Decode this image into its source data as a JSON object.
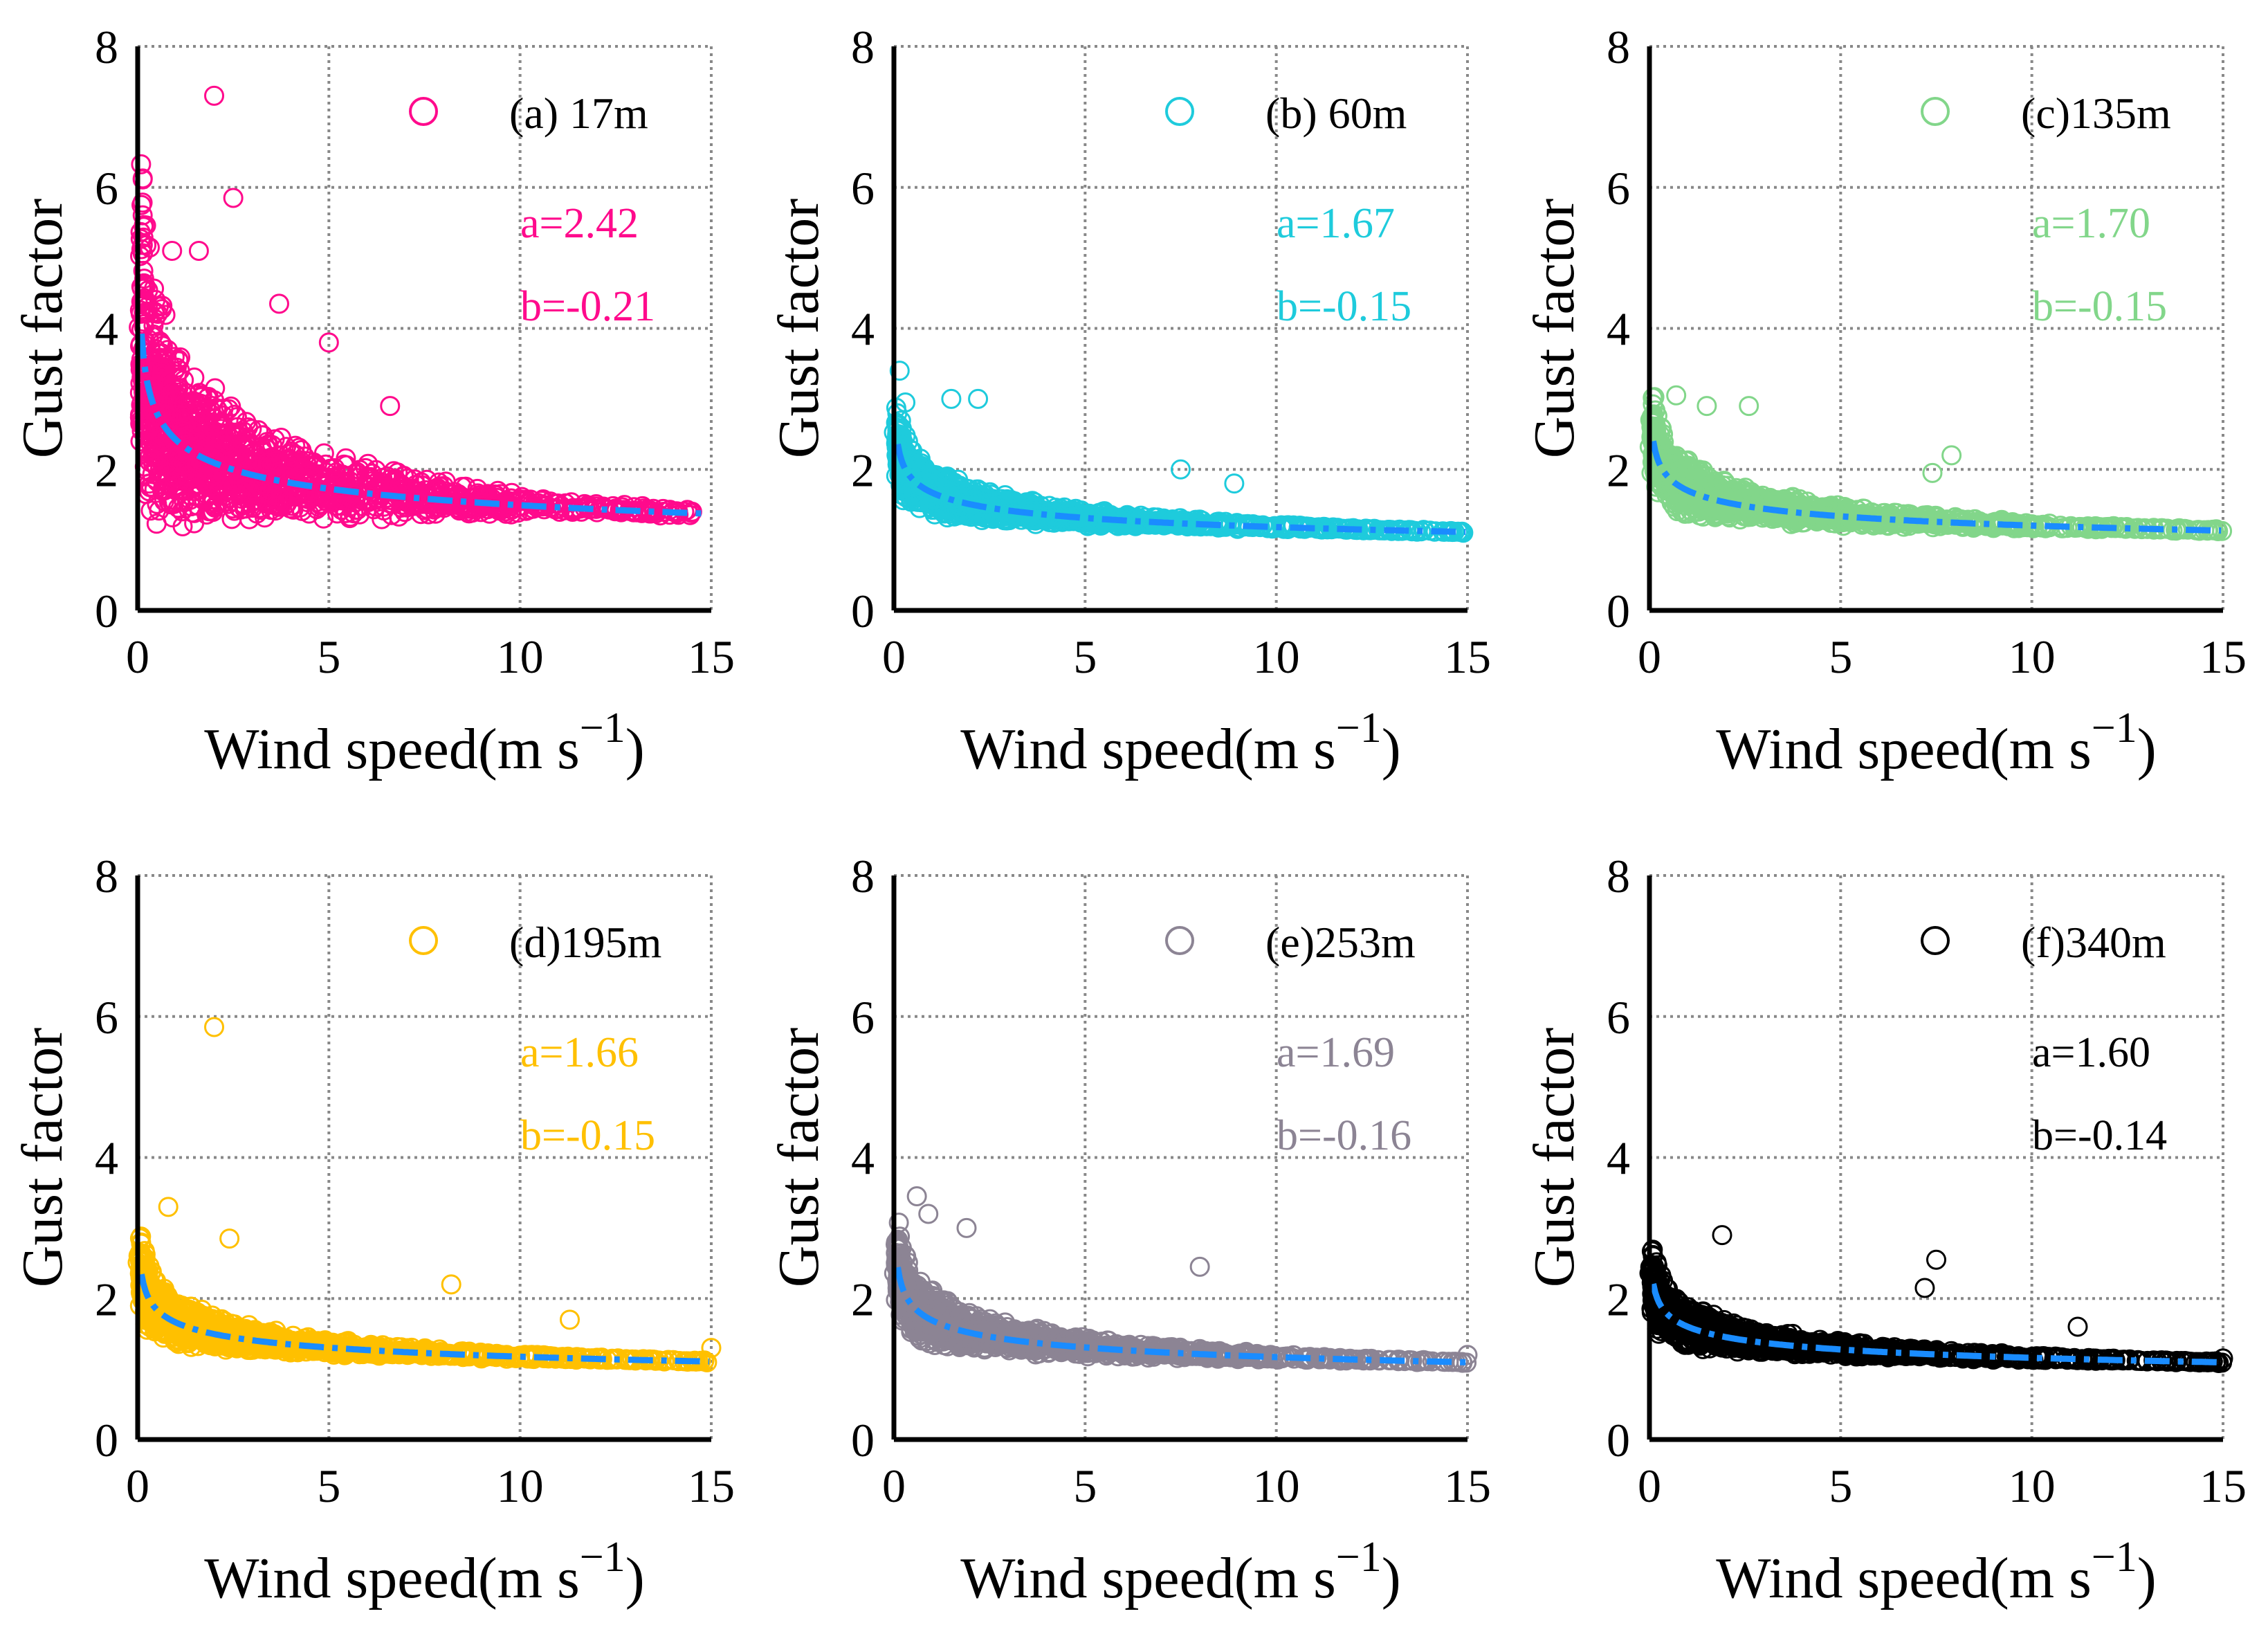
{
  "chart_data": [
    {
      "type": "scatter",
      "panel_label": "(a) 17m",
      "color": "#FF0A8C",
      "fit": {
        "a": 2.42,
        "b": -0.21
      },
      "fit_a_label": "a=2.42",
      "fit_b_label": "b=-0.21",
      "text_color": "#FF0A8C",
      "spread": 0.9,
      "xmax": 14.5,
      "outliers": [
        [
          2.0,
          7.3
        ],
        [
          2.5,
          5.85
        ],
        [
          0.1,
          5.75
        ],
        [
          0.9,
          5.1
        ],
        [
          1.6,
          5.1
        ],
        [
          3.7,
          4.35
        ],
        [
          5.0,
          3.8
        ],
        [
          6.6,
          2.9
        ],
        [
          14.5,
          1.4
        ],
        [
          13.3,
          1.4
        ]
      ]
    },
    {
      "type": "scatter",
      "panel_label": "(b) 60m",
      "color": "#1ECBDC",
      "fit": {
        "a": 1.67,
        "b": -0.15
      },
      "fit_a_label": "a=1.67",
      "fit_b_label": "b=-0.15",
      "text_color": "#1ECBDC",
      "spread": 0.45,
      "xmax": 15,
      "outliers": [
        [
          0.15,
          3.4
        ],
        [
          1.5,
          3.0
        ],
        [
          2.2,
          3.0
        ],
        [
          7.5,
          2.0
        ],
        [
          8.9,
          1.8
        ],
        [
          0.3,
          2.95
        ]
      ]
    },
    {
      "type": "scatter",
      "panel_label": "(c)135m",
      "color": "#82D68A",
      "fit": {
        "a": 1.7,
        "b": -0.15
      },
      "fit_a_label": "a=1.70",
      "fit_b_label": "b=-0.15",
      "text_color": "#82D68A",
      "spread": 0.5,
      "xmax": 15,
      "outliers": [
        [
          0.7,
          3.05
        ],
        [
          1.5,
          2.9
        ],
        [
          2.6,
          2.9
        ],
        [
          7.9,
          2.2
        ],
        [
          7.4,
          1.95
        ]
      ]
    },
    {
      "type": "scatter",
      "panel_label": "(d)195m",
      "color": "#FFC000",
      "fit": {
        "a": 1.66,
        "b": -0.15
      },
      "fit_a_label": "a=1.66",
      "fit_b_label": "b=-0.15",
      "text_color": "#FFC000",
      "spread": 0.45,
      "xmax": 15,
      "outliers": [
        [
          2.0,
          5.85
        ],
        [
          0.8,
          3.3
        ],
        [
          2.4,
          2.85
        ],
        [
          8.2,
          2.2
        ],
        [
          11.3,
          1.7
        ],
        [
          15,
          1.3
        ]
      ]
    },
    {
      "type": "scatter",
      "panel_label": "(e)253m",
      "color": "#8C8494",
      "fit": {
        "a": 1.69,
        "b": -0.16
      },
      "fit_a_label": "a=1.69",
      "fit_b_label": "b=-0.16",
      "text_color": "#8C8494",
      "spread": 0.5,
      "xmax": 15,
      "outliers": [
        [
          0.6,
          3.45
        ],
        [
          0.9,
          3.2
        ],
        [
          1.9,
          3.0
        ],
        [
          8.0,
          2.45
        ],
        [
          15,
          1.2
        ]
      ]
    },
    {
      "type": "scatter",
      "panel_label": "(f)340m",
      "color": "#000000",
      "fit": {
        "a": 1.6,
        "b": -0.14
      },
      "fit_a_label": "a=1.60",
      "fit_b_label": "b=-0.14",
      "text_color": "#000000",
      "spread": 0.45,
      "xmax": 15,
      "outliers": [
        [
          1.9,
          2.9
        ],
        [
          7.5,
          2.55
        ],
        [
          7.2,
          2.15
        ],
        [
          11.2,
          1.6
        ],
        [
          15,
          1.15
        ]
      ]
    }
  ],
  "axes": {
    "xlabel": "Wind speed(m s",
    "xlabel_sup": "−1",
    "xlabel_close": ")",
    "ylabel": "Gust factor",
    "xlim": [
      0,
      15
    ],
    "ylim": [
      0,
      8
    ],
    "xticks": [
      "0",
      "5",
      "10",
      "15"
    ],
    "yticks": [
      "0",
      "2",
      "4",
      "6",
      "8"
    ],
    "grid": true
  },
  "fit_line_color": "#1A8CFF"
}
